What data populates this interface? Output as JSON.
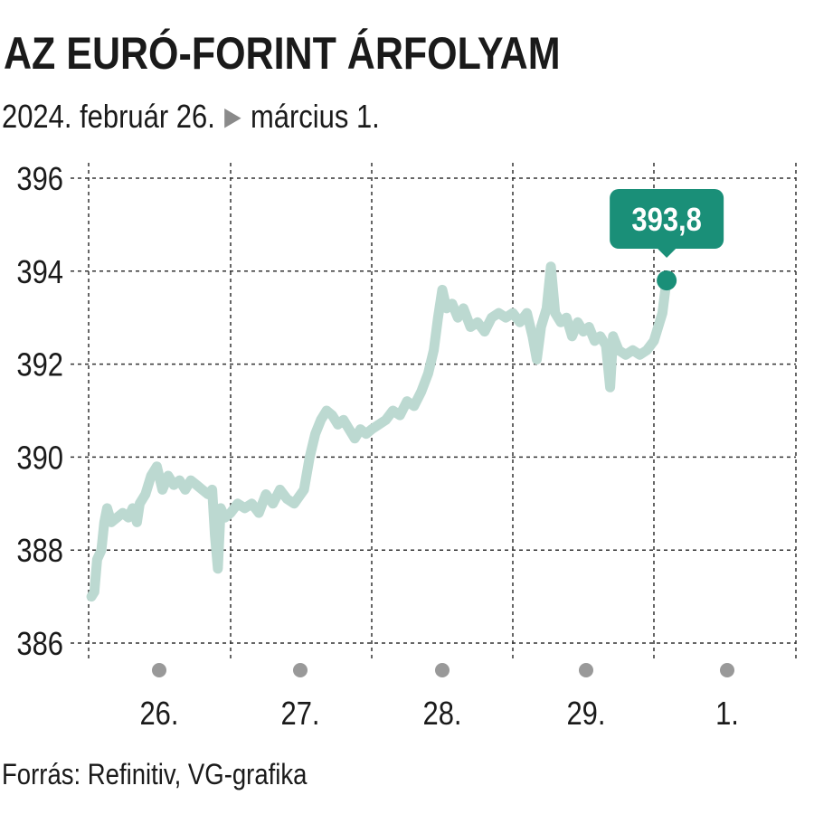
{
  "header": {
    "title": "AZ EURÓ-FORINT ÁRFOLYAM",
    "date_start": "2024. február 26.",
    "date_end": "március 1."
  },
  "footer": {
    "source": "Forrás: Refinitiv, VG-grafika"
  },
  "colors": {
    "line": "#bcd9d1",
    "accent": "#1a8f78",
    "grid": "#333333",
    "day_dot": "#999999"
  },
  "chart_data": {
    "type": "line",
    "title": "AZ EURÓ-FORINT ÁRFOLYAM",
    "subtitle": "2024. február 26. ▶ március 1.",
    "ylim": [
      386,
      396
    ],
    "yticks": [
      "386",
      "388",
      "390",
      "392",
      "394",
      "396"
    ],
    "x_range": [
      0,
      5
    ],
    "x_categories": [
      "26.",
      "27.",
      "28.",
      "29.",
      "1."
    ],
    "grid": true,
    "last_value_label": "393,8",
    "series": [
      {
        "values": [
          [
            0.02,
            387.0
          ],
          [
            0.04,
            387.1
          ],
          [
            0.06,
            387.8
          ],
          [
            0.09,
            388.0
          ],
          [
            0.11,
            388.6
          ],
          [
            0.13,
            388.9
          ],
          [
            0.16,
            388.6
          ],
          [
            0.2,
            388.7
          ],
          [
            0.24,
            388.8
          ],
          [
            0.28,
            388.7
          ],
          [
            0.31,
            388.9
          ],
          [
            0.34,
            388.6
          ],
          [
            0.36,
            389.0
          ],
          [
            0.4,
            389.2
          ],
          [
            0.44,
            389.6
          ],
          [
            0.48,
            389.8
          ],
          [
            0.52,
            389.3
          ],
          [
            0.56,
            389.6
          ],
          [
            0.6,
            389.4
          ],
          [
            0.64,
            389.5
          ],
          [
            0.68,
            389.3
          ],
          [
            0.72,
            389.5
          ],
          [
            0.76,
            389.4
          ],
          [
            0.8,
            389.3
          ],
          [
            0.84,
            389.2
          ],
          [
            0.87,
            389.3
          ],
          [
            0.89,
            388.3
          ],
          [
            0.91,
            387.6
          ],
          [
            0.93,
            388.9
          ],
          [
            0.96,
            388.7
          ],
          [
            1.0,
            388.8
          ],
          [
            1.05,
            389.0
          ],
          [
            1.1,
            388.9
          ],
          [
            1.15,
            389.0
          ],
          [
            1.2,
            388.8
          ],
          [
            1.25,
            389.2
          ],
          [
            1.3,
            389.0
          ],
          [
            1.35,
            389.3
          ],
          [
            1.4,
            389.1
          ],
          [
            1.45,
            389.0
          ],
          [
            1.52,
            389.3
          ],
          [
            1.56,
            390.0
          ],
          [
            1.6,
            390.5
          ],
          [
            1.64,
            390.8
          ],
          [
            1.68,
            391.0
          ],
          [
            1.72,
            390.9
          ],
          [
            1.76,
            390.7
          ],
          [
            1.8,
            390.8
          ],
          [
            1.84,
            390.6
          ],
          [
            1.88,
            390.4
          ],
          [
            1.92,
            390.6
          ],
          [
            1.96,
            390.5
          ],
          [
            2.0,
            390.6
          ],
          [
            2.05,
            390.7
          ],
          [
            2.1,
            390.8
          ],
          [
            2.15,
            391.0
          ],
          [
            2.2,
            390.9
          ],
          [
            2.25,
            391.2
          ],
          [
            2.3,
            391.1
          ],
          [
            2.35,
            391.4
          ],
          [
            2.4,
            391.8
          ],
          [
            2.44,
            392.3
          ],
          [
            2.47,
            393.0
          ],
          [
            2.5,
            393.6
          ],
          [
            2.53,
            393.2
          ],
          [
            2.57,
            393.3
          ],
          [
            2.61,
            393.0
          ],
          [
            2.65,
            393.2
          ],
          [
            2.7,
            392.8
          ],
          [
            2.75,
            392.9
          ],
          [
            2.8,
            392.7
          ],
          [
            2.85,
            393.0
          ],
          [
            2.9,
            393.1
          ],
          [
            2.95,
            393.0
          ],
          [
            3.0,
            393.1
          ],
          [
            3.05,
            392.9
          ],
          [
            3.1,
            393.1
          ],
          [
            3.14,
            392.6
          ],
          [
            3.17,
            392.1
          ],
          [
            3.2,
            392.8
          ],
          [
            3.24,
            393.2
          ],
          [
            3.27,
            394.1
          ],
          [
            3.3,
            393.1
          ],
          [
            3.34,
            392.9
          ],
          [
            3.38,
            393.0
          ],
          [
            3.42,
            392.6
          ],
          [
            3.46,
            392.9
          ],
          [
            3.5,
            392.7
          ],
          [
            3.54,
            392.8
          ],
          [
            3.58,
            392.5
          ],
          [
            3.62,
            392.6
          ],
          [
            3.66,
            392.4
          ],
          [
            3.69,
            391.5
          ],
          [
            3.71,
            392.6
          ],
          [
            3.75,
            392.3
          ],
          [
            3.8,
            392.2
          ],
          [
            3.85,
            392.3
          ],
          [
            3.9,
            392.2
          ],
          [
            3.95,
            392.3
          ],
          [
            4.0,
            392.5
          ],
          [
            4.03,
            392.8
          ],
          [
            4.06,
            393.1
          ],
          [
            4.08,
            393.6
          ],
          [
            4.09,
            393.8
          ]
        ]
      }
    ]
  }
}
